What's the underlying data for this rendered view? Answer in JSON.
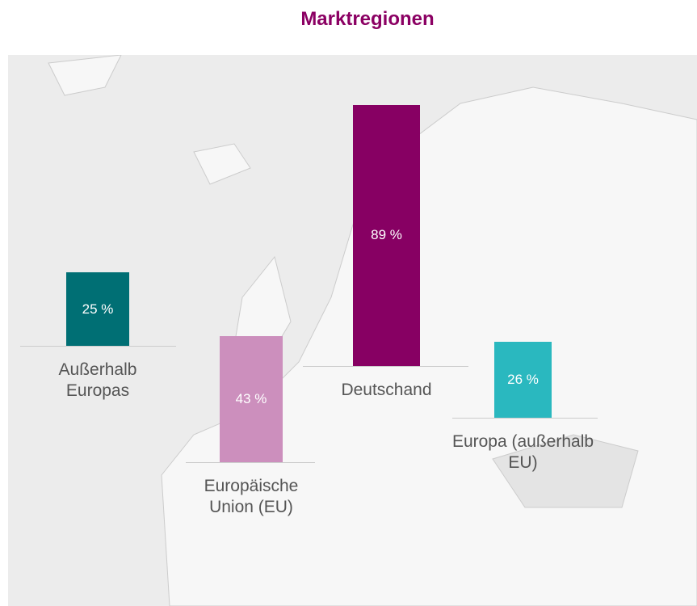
{
  "chart_data": {
    "type": "bar",
    "title": "Marktregionen",
    "categories": [
      "Außerhalb Europas",
      "Europäische Union (EU)",
      "Deutschand",
      "Europa (außerhalb EU)"
    ],
    "values": [
      25,
      43,
      89,
      26
    ],
    "value_labels": [
      "25 %",
      "43 %",
      "89 %",
      "26 %"
    ],
    "colors": [
      "#006f74",
      "#cc8fbd",
      "#870063",
      "#2ab8bf"
    ]
  }
}
